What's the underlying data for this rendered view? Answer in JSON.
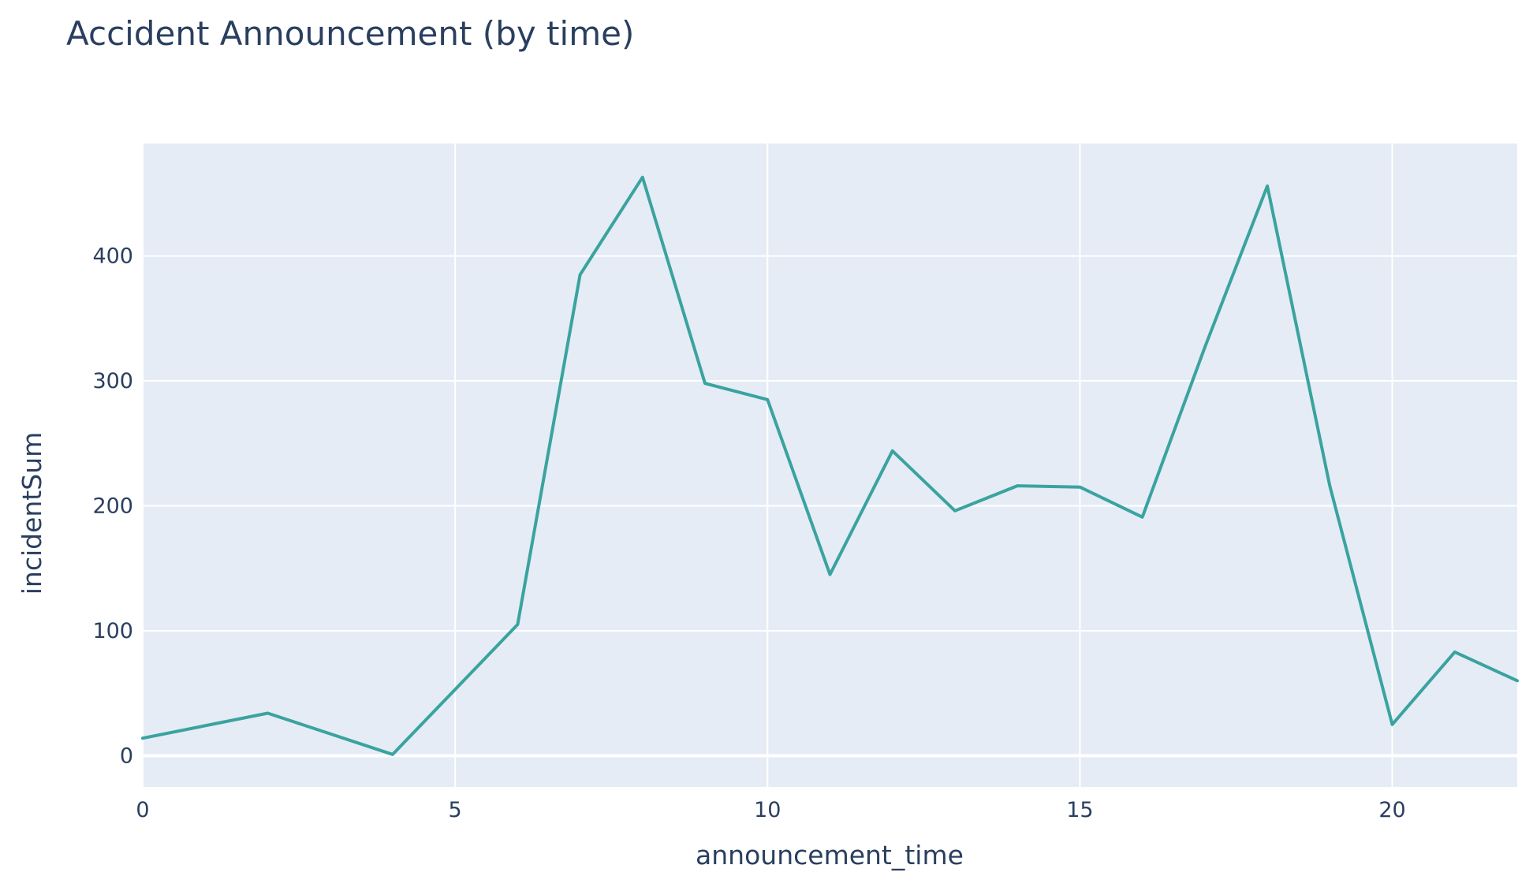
{
  "chart_data": {
    "type": "line",
    "title": "Accident Announcement (by time)",
    "xlabel": "announcement_time",
    "ylabel": "incidentSum",
    "xlim": [
      0,
      22
    ],
    "ylim": [
      -25,
      490
    ],
    "x_ticks": [
      0,
      5,
      10,
      15,
      20
    ],
    "y_ticks": [
      0,
      100,
      200,
      300,
      400
    ],
    "grid": true,
    "background_color": "#e5ecf6",
    "line_color": "#3aa39f",
    "series": [
      {
        "x": [
          0,
          2,
          4,
          6,
          7,
          8,
          9,
          10,
          11,
          12,
          13,
          14,
          15,
          16,
          17,
          18,
          19,
          20,
          21,
          22
        ],
        "values": [
          14,
          34,
          1,
          105,
          385,
          463,
          298,
          285,
          145,
          244,
          196,
          216,
          215,
          191,
          327,
          456,
          216,
          25,
          83,
          60
        ]
      }
    ]
  }
}
